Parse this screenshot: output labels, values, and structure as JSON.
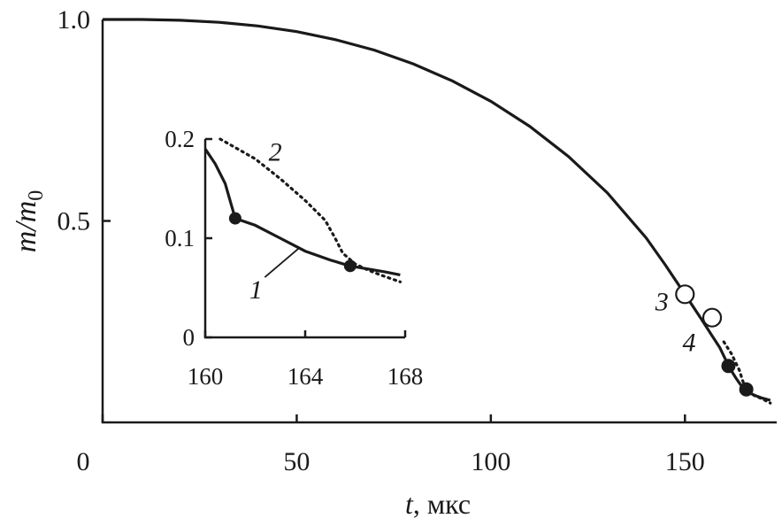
{
  "chart_data": {
    "type": "line",
    "ylabel_main": "m/m",
    "ylabel_sub": "0",
    "xlabel_var": "t",
    "xlabel_unit": ", мкс",
    "xlim": [
      0,
      175
    ],
    "ylim": [
      0,
      1.0
    ],
    "x_tick_labels": [
      "0",
      "50",
      "100",
      "150"
    ],
    "x_tick_values": [
      0,
      50,
      100,
      150
    ],
    "y_tick_labels": [
      "0.5",
      "1.0"
    ],
    "y_tick_values": [
      0.5,
      1.0
    ],
    "series": [
      {
        "style": "solid",
        "x": [
          0,
          10,
          20,
          30,
          40,
          50,
          60,
          70,
          80,
          90,
          100,
          110,
          120,
          130,
          140,
          145,
          150,
          154,
          157,
          159,
          160,
          161,
          162,
          163,
          164,
          165,
          166,
          168,
          170,
          172
        ],
        "y": [
          1.0,
          1.0,
          0.998,
          0.993,
          0.984,
          0.97,
          0.95,
          0.924,
          0.89,
          0.848,
          0.797,
          0.735,
          0.66,
          0.57,
          0.458,
          0.39,
          0.318,
          0.26,
          0.215,
          0.185,
          0.165,
          0.145,
          0.128,
          0.112,
          0.098,
          0.085,
          0.076,
          0.067,
          0.06,
          0.055
        ]
      },
      {
        "style": "dotted",
        "x": [
          160,
          162,
          164,
          165,
          166,
          168,
          170,
          172
        ],
        "y": [
          0.2,
          0.17,
          0.13,
          0.1,
          0.078,
          0.066,
          0.058,
          0.048
        ]
      }
    ],
    "markers": [
      {
        "x": 150.0,
        "y": 0.318,
        "fill": "open",
        "label": "3"
      },
      {
        "x": 157.0,
        "y": 0.26,
        "fill": "open",
        "label": "4"
      },
      {
        "x": 161.2,
        "y": 0.14,
        "fill": "filled"
      },
      {
        "x": 165.8,
        "y": 0.082,
        "fill": "filled"
      }
    ],
    "inset": {
      "xlim": [
        160,
        168
      ],
      "ylim": [
        0,
        0.2
      ],
      "x_tick_labels": [
        "160",
        "164",
        "168"
      ],
      "x_tick_values": [
        160,
        164,
        168
      ],
      "y_tick_labels": [
        "0",
        "0.1",
        "0.2"
      ],
      "y_tick_values": [
        0,
        0.1,
        0.2
      ],
      "series": [
        {
          "name": "1",
          "style": "solid",
          "x": [
            160,
            160.4,
            160.8,
            161.2,
            162,
            163,
            164,
            165,
            165.8,
            166.5,
            167.2,
            167.8
          ],
          "y": [
            0.19,
            0.175,
            0.155,
            0.12,
            0.113,
            0.1,
            0.087,
            0.078,
            0.072,
            0.069,
            0.066,
            0.063
          ]
        },
        {
          "name": "2",
          "style": "dotted",
          "x": [
            160.6,
            162,
            163,
            164,
            164.8,
            165.2,
            165.5,
            166,
            166.5,
            167,
            167.8
          ],
          "y": [
            0.2,
            0.18,
            0.16,
            0.138,
            0.118,
            0.1,
            0.085,
            0.074,
            0.068,
            0.063,
            0.056
          ]
        }
      ],
      "markers": [
        {
          "x": 161.2,
          "y": 0.12
        },
        {
          "x": 165.8,
          "y": 0.072
        }
      ]
    }
  }
}
